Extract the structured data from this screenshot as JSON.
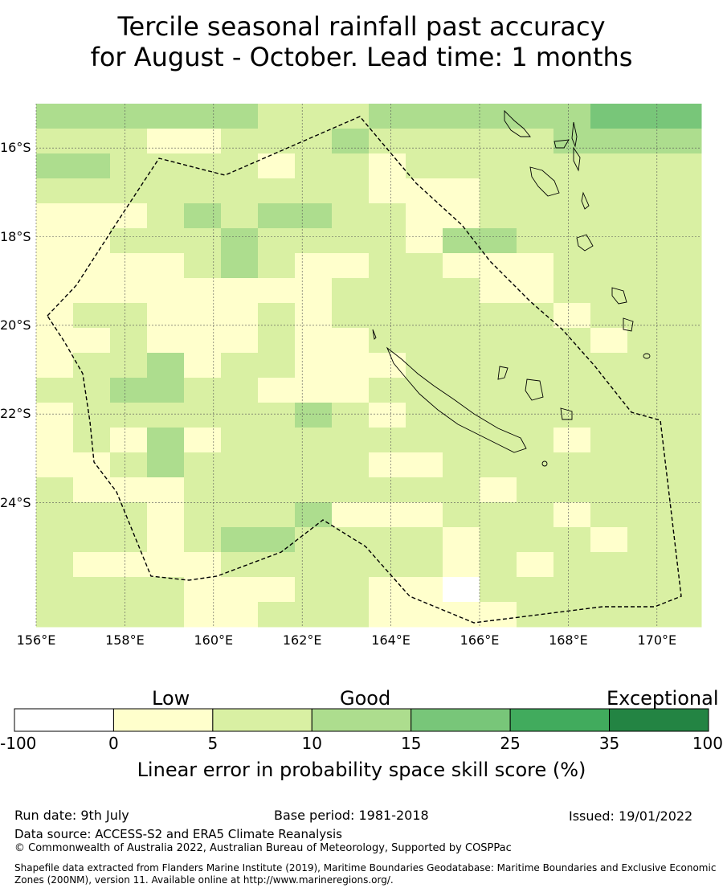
{
  "title": {
    "line1": "Tercile seasonal rainfall past accuracy",
    "line2": "for August - October. Lead time: 1 months"
  },
  "map": {
    "lon_range": [
      156,
      171
    ],
    "lat_range": [
      -26.8,
      -15.0
    ],
    "lon_labels": [
      "156°E",
      "158°E",
      "160°E",
      "162°E",
      "164°E",
      "166°E",
      "168°E",
      "170°E"
    ],
    "lat_labels": [
      "16°S",
      "18°S",
      "20°S",
      "22°S",
      "24°S"
    ],
    "lat_values": [
      -16,
      -18,
      -20,
      -22,
      -24
    ],
    "lon_values": [
      156,
      158,
      160,
      162,
      164,
      166,
      168,
      170
    ],
    "gridlines": true,
    "boundary": "EEZ dashed outline"
  },
  "colorbar": {
    "headings": [
      "Low",
      "Good",
      "Exceptional"
    ],
    "ticks": [
      "-100",
      "0",
      "5",
      "10",
      "15",
      "25",
      "35",
      "100"
    ],
    "colors": [
      "#ffffff",
      "#ffffcc",
      "#d9f0a3",
      "#addd8e",
      "#78c679",
      "#41ab5d",
      "#238443"
    ],
    "title": "Linear error in probability space skill score (%)"
  },
  "footer": {
    "run_date": "Run date: 9th July",
    "base_period": "Base period: 1981-2018",
    "issued": "Issued: 19/01/2022",
    "source": "Data source: ACCESS-S2 and ERA5 Climate Reanalysis",
    "copyright": "© Commonwealth of Australia 2022, Australian Bureau of Meteorology, Supported by COSPPac",
    "shapefile_1": "Shapefile data extracted from Flanders Marine Institute (2019), Maritime Boundaries Geodatabase: Maritime Boundaries and Exclusive Economic",
    "shapefile_2": "Zones (200NM), version 11. Available online at http://www.marineregions.org/."
  }
}
